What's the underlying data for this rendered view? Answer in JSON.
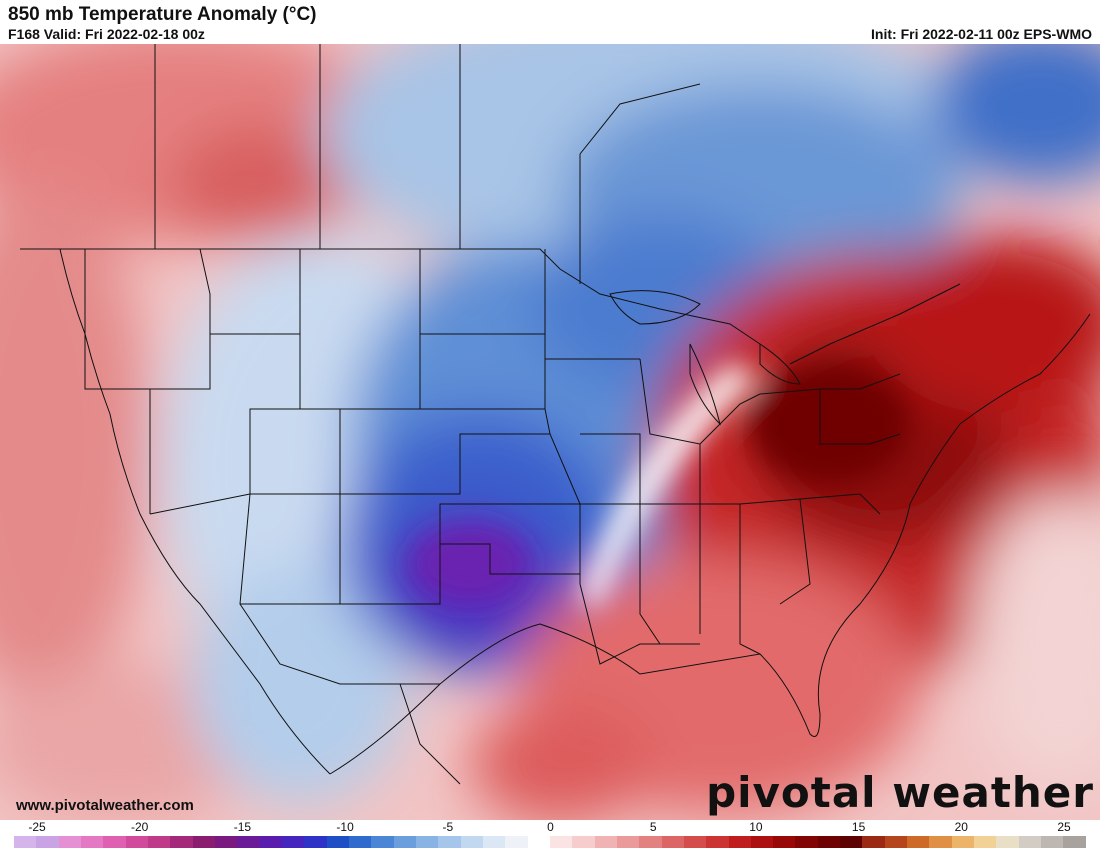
{
  "header": {
    "title": "850 mb Temperature Anomaly (°C)",
    "valid": "F168 Valid: Fri 2022-02-18 00z",
    "init": "Init: Fri 2022-02-11 00z EPS-WMO"
  },
  "footer": {
    "website": "www.pivotalweather.com",
    "brand": "pivotal weather"
  },
  "colorbar": {
    "ticks": [
      "-25",
      "-20",
      "-15",
      "-10",
      "-5",
      "0",
      "5",
      "10",
      "15",
      "20",
      "25"
    ],
    "colors": [
      "#d4b4ea",
      "#caa3e4",
      "#e58fd4",
      "#e478c3",
      "#df5fb0",
      "#d24a9c",
      "#c03a8a",
      "#a5297a",
      "#8a1d70",
      "#7a1a80",
      "#6b1a98",
      "#5a1cae",
      "#4525be",
      "#2f32c7",
      "#1f4fc4",
      "#2e6bcc",
      "#4a86d5",
      "#6a9edc",
      "#88b3e3",
      "#a5c6ea",
      "#c2d8f0",
      "#dbe7f5",
      "#eef2f8",
      "#ffffff",
      "#fbe3e3",
      "#f6cccc",
      "#f0b3b3",
      "#ea9a9a",
      "#e38080",
      "#dc6666",
      "#d44c4c",
      "#cc3333",
      "#c01e1e",
      "#ad1010",
      "#980808",
      "#830404",
      "#6e0202",
      "#5e0101",
      "#9a2a14",
      "#b5451c",
      "#cd6a27",
      "#df9045",
      "#ebb469",
      "#f1d196",
      "#e8dfc6",
      "#d2ccc4",
      "#bdb7b2",
      "#a8a29e"
    ]
  },
  "map": {
    "layers": [
      "temperature-anomaly-field",
      "state-borders",
      "coastlines"
    ]
  }
}
